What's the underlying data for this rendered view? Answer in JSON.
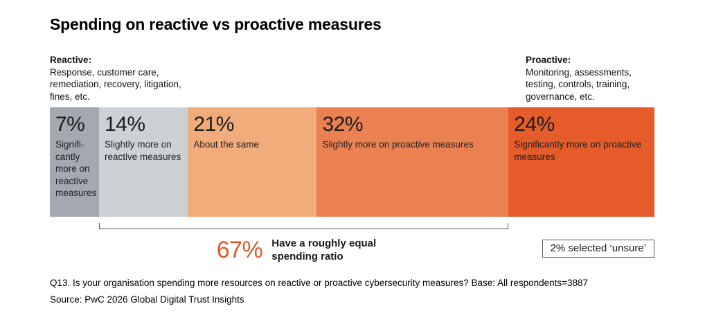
{
  "title": "Spending on reactive vs proactive measures",
  "legend": {
    "reactive": {
      "heading": "Reactive:",
      "description": "Response, customer care, remediation, recovery, litigation, fines, etc."
    },
    "proactive": {
      "heading": "Proactive:",
      "description": "Monitoring, assessments, testing, controls, training, governance, etc."
    }
  },
  "chart_data": {
    "type": "bar",
    "subtype": "horizontal-stacked-100pct",
    "title": "Spending on reactive vs proactive measures",
    "unit": "%",
    "grid": false,
    "segments": [
      {
        "value": 7,
        "label": "7%",
        "description": "Signifi-cantly more on reactive measures",
        "color": "#A4A8B1"
      },
      {
        "value": 14,
        "label": "14%",
        "description": "Slightly more on reactive measures",
        "color": "#CDD1D6"
      },
      {
        "value": 21,
        "label": "21%",
        "description": "About the same",
        "color": "#F2AC7B"
      },
      {
        "value": 32,
        "label": "32%",
        "description": "Slightly more on proactive measures",
        "color": "#EB8150"
      },
      {
        "value": 24,
        "label": "24%",
        "description": "Significantly more on proactive measures",
        "color": "#E55C2A"
      }
    ],
    "bracket": {
      "from_segment": 1,
      "to_segment": 3,
      "value": 67,
      "value_label": "67%",
      "value_color": "#DC5A28",
      "caption": "Have a roughly equal spending ratio"
    },
    "note": "2% selected ‘unsure’"
  },
  "footer": {
    "line1": "Q13. Is your organisation spending more resources on reactive or proactive cybersecurity measures? Base: All respondents=3887",
    "line2": "Source: PwC 2026 Global Digital Trust Insights"
  }
}
